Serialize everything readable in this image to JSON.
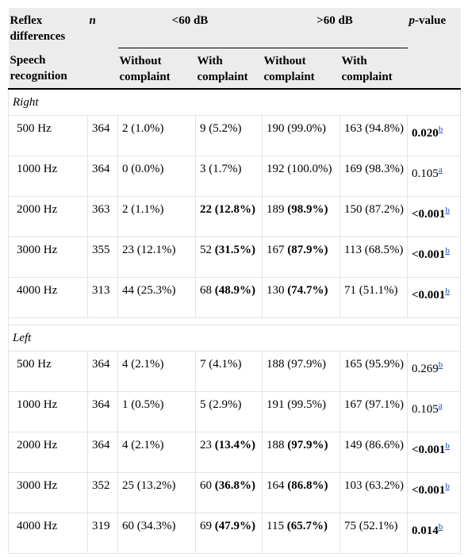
{
  "header": {
    "reflex": "Reflex differences",
    "n": "n",
    "below": "<60 dB",
    "above": ">60 dB",
    "pvalue": {
      "italic": "p",
      "text": "-value"
    },
    "speech": "Speech recognition",
    "subheads": [
      "Without complaint",
      "With complaint",
      "Without complaint",
      "With complaint"
    ]
  },
  "sections": [
    {
      "label": "Right",
      "rows": [
        {
          "freq": "500 Hz",
          "n": 364,
          "cells": [
            [
              {
                "text": "2 (1.0%)"
              }
            ],
            [
              {
                "text": "9 (5.2%)"
              }
            ],
            [
              {
                "text": "190 (99.0%)"
              }
            ],
            [
              {
                "text": "163 (94.8%)"
              }
            ]
          ],
          "p": {
            "text": "0.020",
            "bold": true,
            "note": "b"
          }
        },
        {
          "freq": "1000 Hz",
          "n": 364,
          "cells": [
            [
              {
                "text": "0 (0.0%)"
              }
            ],
            [
              {
                "text": "3 (1.7%)"
              }
            ],
            [
              {
                "text": "192 (100.0%)"
              }
            ],
            [
              {
                "text": "169 (98.3%)"
              }
            ]
          ],
          "p": {
            "text": "0.105",
            "bold": false,
            "note": "a"
          }
        },
        {
          "freq": "2000 Hz",
          "n": 363,
          "cells": [
            [
              {
                "text": "2 (1.1%)"
              }
            ],
            [
              {
                "text": "22 (12.8%)",
                "bold": true
              }
            ],
            [
              {
                "text": "189 "
              },
              {
                "text": "(98.9%)",
                "bold": true
              }
            ],
            [
              {
                "text": "150 (87.2%)"
              }
            ]
          ],
          "p": {
            "text": "<0.001",
            "bold": true,
            "note": "b"
          }
        },
        {
          "freq": "3000 Hz",
          "n": 355,
          "cells": [
            [
              {
                "text": "23 (12.1%)"
              }
            ],
            [
              {
                "text": "52 "
              },
              {
                "text": "(31.5%)",
                "bold": true
              }
            ],
            [
              {
                "text": "167 "
              },
              {
                "text": "(87.9%)",
                "bold": true
              }
            ],
            [
              {
                "text": "113 (68.5%)"
              }
            ]
          ],
          "p": {
            "text": "<0.001",
            "bold": true,
            "note": "b"
          }
        },
        {
          "freq": "4000 Hz",
          "n": 313,
          "cells": [
            [
              {
                "text": "44 (25.3%)"
              }
            ],
            [
              {
                "text": "68 "
              },
              {
                "text": "(48.9%)",
                "bold": true
              }
            ],
            [
              {
                "text": "130 "
              },
              {
                "text": "(74.7%)",
                "bold": true
              }
            ],
            [
              {
                "text": "71 (51.1%)"
              }
            ]
          ],
          "p": {
            "text": "<0.001",
            "bold": true,
            "note": "b"
          }
        }
      ]
    },
    {
      "label": "Left",
      "rows": [
        {
          "freq": "500 Hz",
          "n": 364,
          "cells": [
            [
              {
                "text": "4 (2.1%)"
              }
            ],
            [
              {
                "text": "7 (4.1%)"
              }
            ],
            [
              {
                "text": "188 (97.9%)"
              }
            ],
            [
              {
                "text": "165 (95.9%)"
              }
            ]
          ],
          "p": {
            "text": "0.269",
            "bold": false,
            "note": "b"
          }
        },
        {
          "freq": "1000 Hz",
          "n": 364,
          "cells": [
            [
              {
                "text": "1 (0.5%)"
              }
            ],
            [
              {
                "text": "5 (2.9%)"
              }
            ],
            [
              {
                "text": "191 (99.5%)"
              }
            ],
            [
              {
                "text": "167 (97.1%)"
              }
            ]
          ],
          "p": {
            "text": "0.105",
            "bold": false,
            "note": "a"
          }
        },
        {
          "freq": "2000 Hz",
          "n": 364,
          "cells": [
            [
              {
                "text": "4 (2.1%)"
              }
            ],
            [
              {
                "text": "23 "
              },
              {
                "text": "(13.4%)",
                "bold": true
              }
            ],
            [
              {
                "text": "188 "
              },
              {
                "text": "(97.9%)",
                "bold": true
              }
            ],
            [
              {
                "text": "149 (86.6%)"
              }
            ]
          ],
          "p": {
            "text": "<0.001",
            "bold": true,
            "note": "b"
          }
        },
        {
          "freq": "3000 Hz",
          "n": 352,
          "cells": [
            [
              {
                "text": "25 (13.2%)"
              }
            ],
            [
              {
                "text": "60 "
              },
              {
                "text": "(36.8%)",
                "bold": true
              }
            ],
            [
              {
                "text": "164 "
              },
              {
                "text": "(86.8%)",
                "bold": true
              }
            ],
            [
              {
                "text": "103 (63.2%)"
              }
            ]
          ],
          "p": {
            "text": "<0.001",
            "bold": true,
            "note": "b"
          }
        },
        {
          "freq": "4000 Hz",
          "n": 319,
          "cells": [
            [
              {
                "text": "60 (34.3%)"
              }
            ],
            [
              {
                "text": "69 "
              },
              {
                "text": "(47.9%)",
                "bold": true
              }
            ],
            [
              {
                "text": "115 "
              },
              {
                "text": "(65.7%)",
                "bold": true
              }
            ],
            [
              {
                "text": "75 (52.1%)"
              }
            ]
          ],
          "p": {
            "text": "0.014",
            "bold": true,
            "note": "b"
          }
        }
      ]
    }
  ]
}
